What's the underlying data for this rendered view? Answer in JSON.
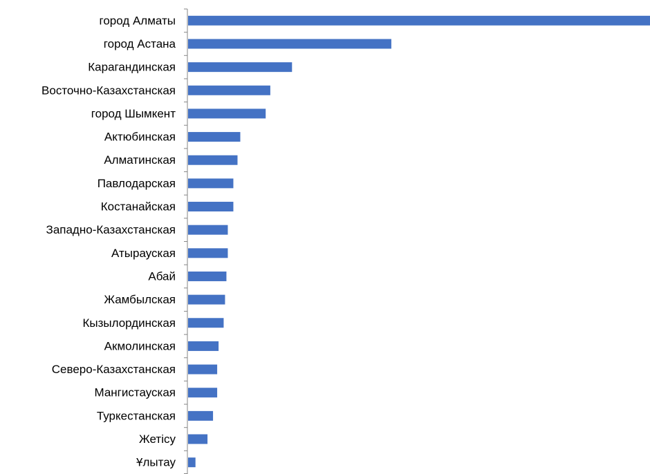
{
  "chart_data": {
    "type": "bar",
    "orientation": "horizontal",
    "title": "",
    "xlabel": "",
    "ylabel": "",
    "categories": [
      "город Алматы",
      "город Астана",
      "Карагандинская",
      "Восточно-Казахстанская",
      "город Шымкент",
      "Актюбинская",
      "Алматинская",
      "Павлодарская",
      "Костанайская",
      "Западно-Казахстанская",
      "Атырауская",
      "Абай",
      "Жамбылская",
      "Кызылординская",
      "Акмолинская",
      "Северо-Казахстанская",
      "Мангистауская",
      "Туркестанская ",
      "Жетісу",
      "Ұлытау"
    ],
    "values": [
      100,
      44,
      22.5,
      17.8,
      16.8,
      11.3,
      10.7,
      9.8,
      9.8,
      8.6,
      8.6,
      8.3,
      8.0,
      7.7,
      6.6,
      6.3,
      6.3,
      5.4,
      4.2,
      1.6
    ],
    "xlim": [
      0,
      100
    ],
    "grid": false,
    "legend": "none",
    "bar_color": "#4472C4",
    "axis_color": "#868686"
  }
}
